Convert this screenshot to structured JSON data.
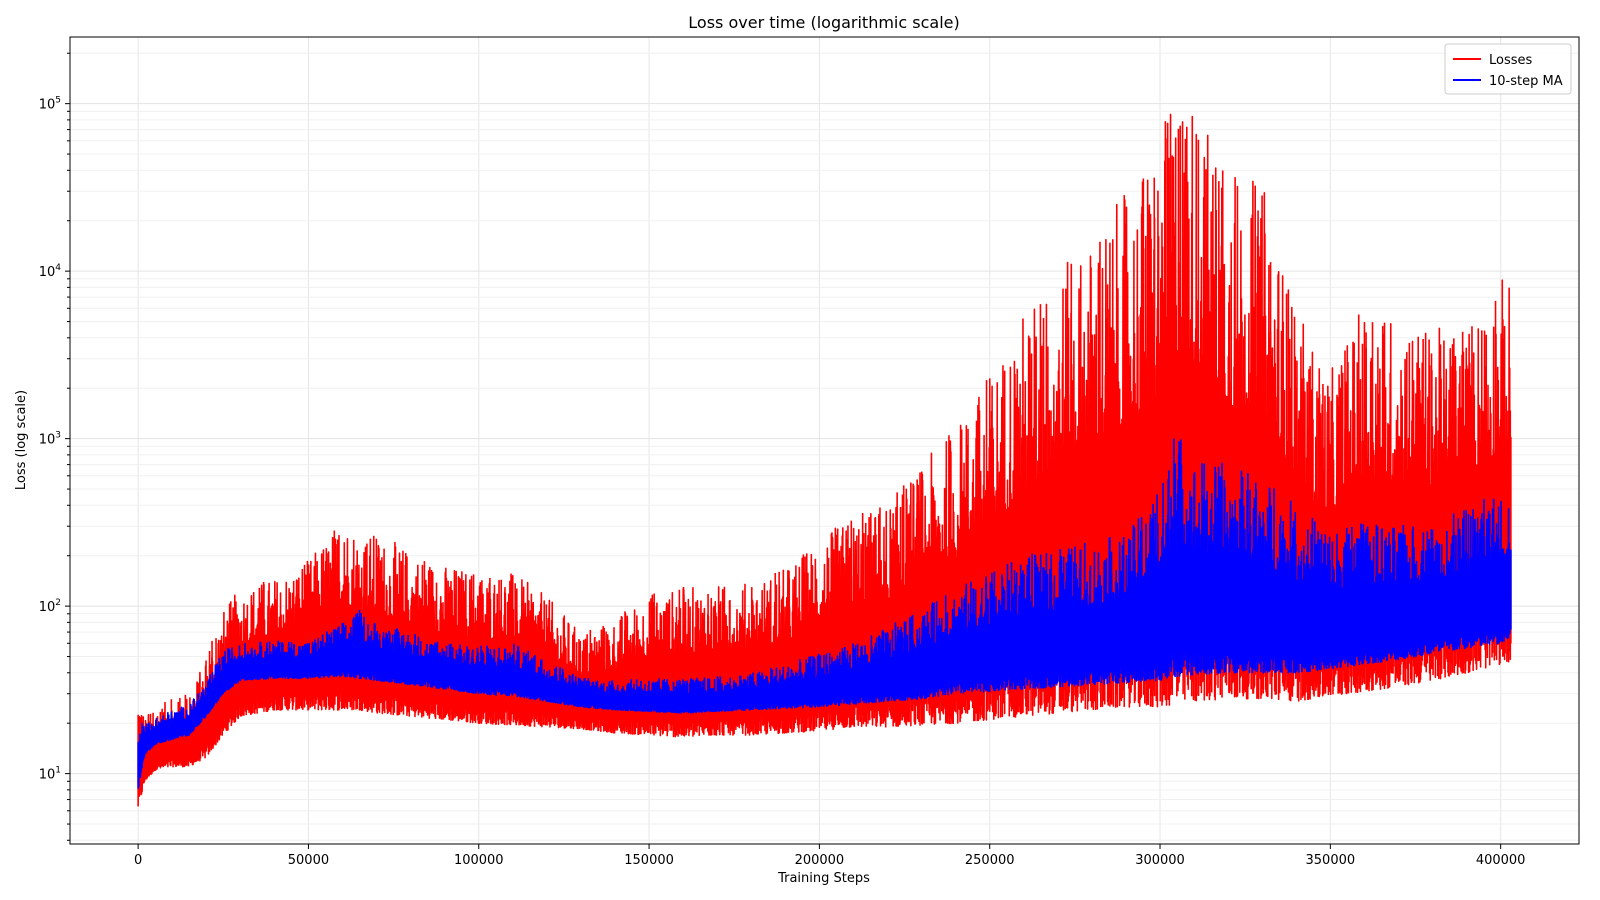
{
  "chart_data": {
    "type": "line",
    "title": "Loss over time (logarithmic scale)",
    "xlabel": "Training Steps",
    "ylabel": "Loss (log scale)",
    "yscale": "log",
    "xlim": [
      -20000,
      423000
    ],
    "ylim": [
      3.8,
      250000
    ],
    "grid": true,
    "legend_position": "top-right",
    "x_ticks": [
      0,
      50000,
      100000,
      150000,
      200000,
      250000,
      300000,
      350000,
      400000
    ],
    "x_tick_labels": [
      "0",
      "50000",
      "100000",
      "150000",
      "200000",
      "250000",
      "300000",
      "350000",
      "400000"
    ],
    "y_ticks": [
      10,
      100,
      1000,
      10000,
      100000
    ],
    "y_tick_labels": [
      {
        "base": "10",
        "exp": "1"
      },
      {
        "base": "10",
        "exp": "2"
      },
      {
        "base": "10",
        "exp": "3"
      },
      {
        "base": "10",
        "exp": "4"
      },
      {
        "base": "10",
        "exp": "5"
      }
    ],
    "series": [
      {
        "name": "Losses",
        "color": "#ff0000",
        "x": [
          0,
          2000,
          5000,
          10000,
          15000,
          20000,
          25000,
          30000,
          40000,
          50000,
          60000,
          65000,
          70000,
          80000,
          90000,
          100000,
          110000,
          120000,
          130000,
          140000,
          150000,
          160000,
          170000,
          180000,
          190000,
          200000,
          210000,
          220000,
          230000,
          240000,
          250000,
          260000,
          270000,
          280000,
          290000,
          300000,
          305000,
          310000,
          320000,
          330000,
          340000,
          350000,
          360000,
          370000,
          380000,
          390000,
          400000,
          403000
        ],
        "low": [
          6.2,
          9,
          10.5,
          11,
          11,
          12.5,
          17,
          22,
          24,
          24,
          24,
          24,
          23,
          22,
          21,
          20,
          19.5,
          19,
          18.5,
          17.5,
          17,
          16.5,
          17,
          17,
          17.5,
          18,
          19,
          19,
          19.5,
          20,
          21,
          22,
          23,
          24,
          25,
          25,
          26,
          27,
          28,
          28,
          27,
          29,
          31,
          33,
          36,
          40,
          45,
          47
        ],
        "high": [
          36,
          22,
          25,
          28,
          30,
          50,
          95,
          130,
          150,
          190,
          350,
          300,
          270,
          220,
          180,
          165,
          160,
          115,
          70,
          85,
          120,
          130,
          135,
          140,
          170,
          260,
          340,
          420,
          700,
          1200,
          2500,
          6000,
          10000,
          16000,
          30000,
          60000,
          150000,
          120000,
          40000,
          35000,
          6000,
          2500,
          6500,
          5500,
          4500,
          5000,
          9500,
          9000
        ]
      },
      {
        "name": "10-step MA",
        "color": "#0000ff",
        "x": [
          0,
          2000,
          5000,
          10000,
          15000,
          20000,
          25000,
          30000,
          40000,
          50000,
          60000,
          65000,
          70000,
          80000,
          90000,
          100000,
          110000,
          120000,
          130000,
          140000,
          150000,
          160000,
          170000,
          180000,
          190000,
          200000,
          210000,
          220000,
          230000,
          240000,
          250000,
          260000,
          270000,
          280000,
          290000,
          300000,
          305000,
          310000,
          320000,
          330000,
          340000,
          350000,
          360000,
          370000,
          380000,
          390000,
          400000,
          403000
        ],
        "low": [
          8,
          13,
          15,
          16,
          17,
          22,
          30,
          36,
          37,
          37,
          38,
          37,
          36,
          34,
          32,
          30,
          29,
          27,
          25,
          24,
          23.5,
          23,
          23.5,
          24,
          24.5,
          25,
          26,
          27,
          28,
          30,
          31,
          32,
          33,
          34,
          35,
          36,
          38,
          39,
          40,
          40,
          40,
          42,
          45,
          48,
          52,
          56,
          60,
          62
        ],
        "high": [
          26,
          20,
          22,
          24,
          26,
          35,
          55,
          60,
          62,
          62,
          80,
          95,
          80,
          70,
          60,
          58,
          60,
          48,
          38,
          36,
          37,
          37,
          38,
          40,
          45,
          52,
          60,
          75,
          95,
          130,
          160,
          200,
          220,
          250,
          270,
          500,
          1200,
          800,
          700,
          600,
          400,
          300,
          320,
          300,
          320,
          380,
          500,
          520
        ]
      }
    ]
  }
}
